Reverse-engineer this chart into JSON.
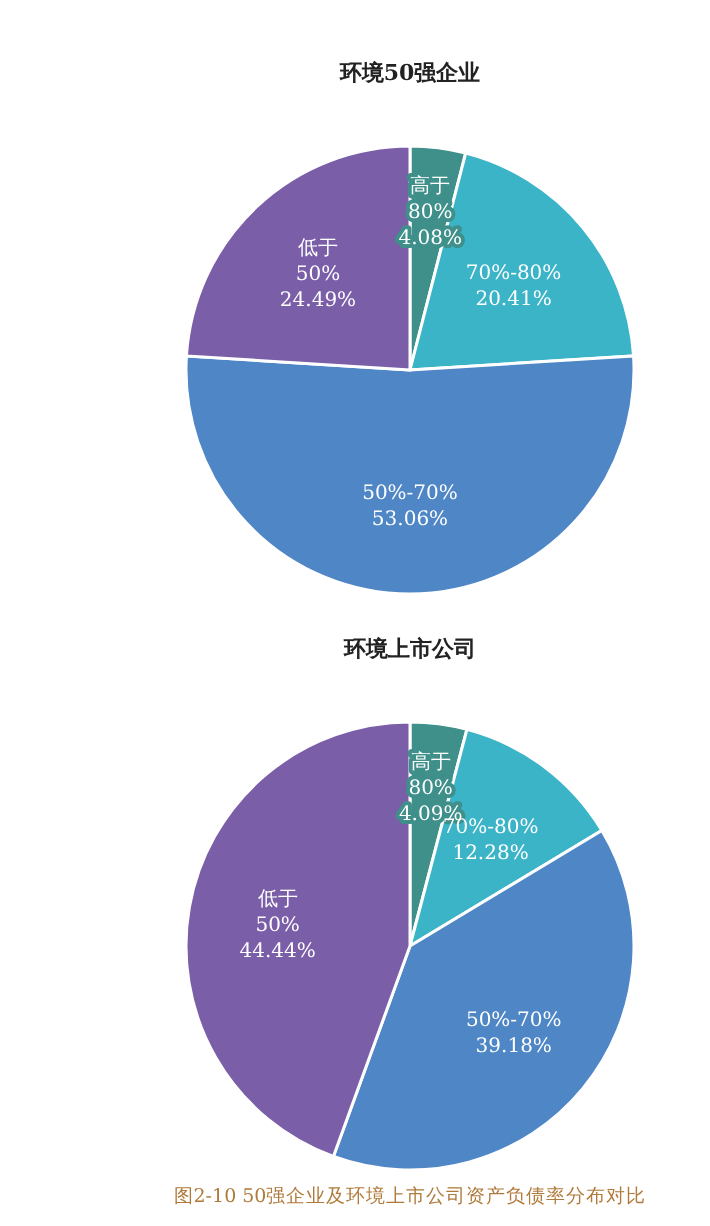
{
  "chart_data": [
    {
      "type": "pie",
      "title": "环境50强企业",
      "categories": [
        "高于\n80%",
        "70%-80%",
        "50%-70%",
        "低于\n50%"
      ],
      "values": [
        4.08,
        20.41,
        53.06,
        24.49
      ],
      "value_labels": [
        "4.08%",
        "20.41%",
        "53.06%",
        "24.49%"
      ],
      "colors": [
        "#3f8f8a",
        "#3cb4c8",
        "#4f86c6",
        "#7a5ea8"
      ]
    },
    {
      "type": "pie",
      "title": "环境上市公司",
      "categories": [
        "高于\n80%",
        "70%-80%",
        "50%-70%",
        "低于\n50%"
      ],
      "values": [
        4.09,
        12.28,
        39.18,
        44.44
      ],
      "value_labels": [
        "4.09%",
        "12.28%",
        "39.18%",
        "44.44%"
      ],
      "colors": [
        "#3f8f8a",
        "#3cb4c8",
        "#4f86c6",
        "#7a5ea8"
      ],
      "annotations": [
        "图2-10 50强企业及环境上市公司资产负债率分布对比"
      ]
    }
  ]
}
